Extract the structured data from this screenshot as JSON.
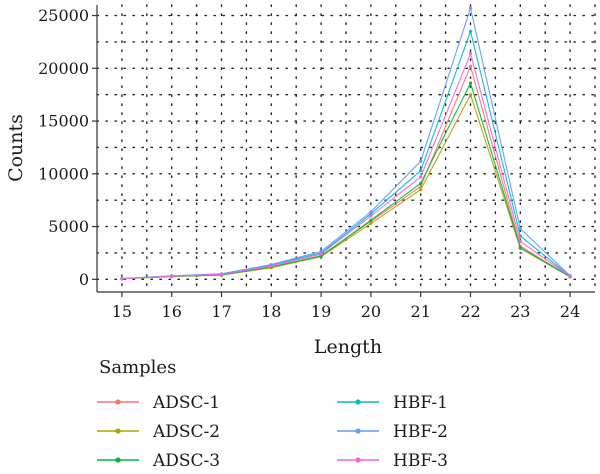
{
  "chart_data": {
    "type": "line",
    "xlabel": "Length",
    "ylabel": "Counts",
    "x": [
      15,
      16,
      17,
      18,
      19,
      20,
      21,
      22,
      23,
      24
    ],
    "xlim": [
      14.5,
      24.5
    ],
    "ylim": [
      -1200,
      26000
    ],
    "yticks": [
      0,
      5000,
      10000,
      15000,
      20000,
      25000
    ],
    "grid": "dotted",
    "legend": {
      "title": "Samples",
      "placement": "bottom"
    },
    "series": [
      {
        "name": "ADSC-1",
        "color": "#F8766D",
        "values": [
          50,
          290,
          430,
          1150,
          2250,
          5500,
          8800,
          20200,
          3150,
          250
        ]
      },
      {
        "name": "ADSC-2",
        "color": "#B79F00",
        "values": [
          50,
          260,
          400,
          1100,
          2150,
          5300,
          8500,
          17500,
          2950,
          230
        ]
      },
      {
        "name": "ADSC-3",
        "color": "#00BA38",
        "values": [
          60,
          280,
          420,
          1180,
          2200,
          5600,
          9100,
          18600,
          3000,
          240
        ]
      },
      {
        "name": "HBF-1",
        "color": "#00BFC4",
        "values": [
          70,
          320,
          500,
          1350,
          2500,
          6200,
          10300,
          23500,
          4100,
          310
        ]
      },
      {
        "name": "HBF-2",
        "color": "#619CFF",
        "values": [
          75,
          340,
          520,
          1400,
          2650,
          6400,
          11200,
          25700,
          4800,
          340
        ]
      },
      {
        "name": "HBF-3",
        "color": "#F564E3",
        "values": [
          65,
          300,
          470,
          1250,
          2400,
          6000,
          9700,
          21400,
          3600,
          280
        ]
      }
    ]
  }
}
